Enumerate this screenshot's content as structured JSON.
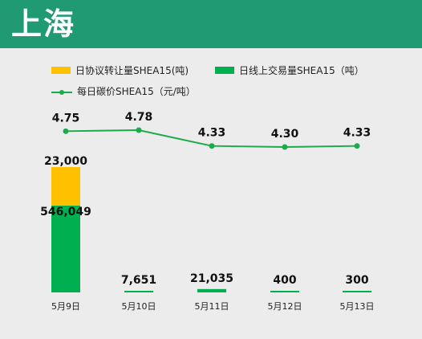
{
  "header": {
    "title": "上海"
  },
  "colors": {
    "header_bg": "#1f9a73",
    "agreement": "#ffc000",
    "online": "#00b050",
    "price": "#1aab4b"
  },
  "legend": {
    "agreement": "日协议转让量SHEA15(吨)",
    "online": "日线上交易量SHEA15（吨）",
    "price": "每日碳价SHEA15（元/吨）"
  },
  "chart_data": {
    "type": "bar",
    "stacked": true,
    "categories": [
      "5月9日",
      "5月10日",
      "5月11日",
      "5月12日",
      "5月13日"
    ],
    "series": [
      {
        "name": "日线上交易量SHEA15（吨）",
        "type": "bar",
        "values": [
          546049,
          7651,
          21035,
          400,
          300
        ],
        "labels": [
          "546,049",
          "7,651",
          "21,035",
          "400",
          "300"
        ]
      },
      {
        "name": "日协议转让量SHEA15(吨)",
        "type": "bar",
        "values": [
          23000,
          0,
          0,
          0,
          0
        ],
        "labels": [
          "23,000",
          "",
          "",
          "",
          ""
        ]
      },
      {
        "name": "每日碳价SHEA15（元/吨）",
        "type": "line",
        "values": [
          4.75,
          4.78,
          4.33,
          4.3,
          4.33
        ],
        "labels": [
          "4.75",
          "4.78",
          "4.33",
          "4.30",
          "4.33"
        ]
      }
    ],
    "grid": false,
    "legend_position": "top"
  }
}
